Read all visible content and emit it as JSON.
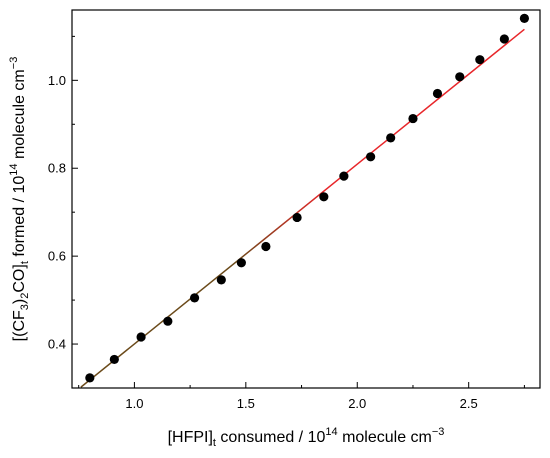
{
  "chart_data": {
    "type": "scatter",
    "xlabel": {
      "prefix": "[HFPI]",
      "sub": "t",
      "middle": " consumed / 10",
      "sup": "14",
      "suffix": " molecule cm",
      "unit_sup": "−3"
    },
    "ylabel": {
      "p1": "[(CF",
      "sub1": "3",
      "p2": ")",
      "sub2": "2",
      "p3": "CO]",
      "sub3": "t",
      "p4": " formed / 10",
      "sup1": "14",
      "p5": " molecule cm",
      "sup2": "−3"
    },
    "xlim": [
      0.72,
      2.82
    ],
    "ylim": [
      0.3,
      1.16
    ],
    "x_ticks": [
      1.0,
      1.5,
      2.0,
      2.5
    ],
    "x_tick_labels": [
      "1.0",
      "1.5",
      "2.0",
      "2.5"
    ],
    "y_ticks": [
      0.4,
      0.6,
      0.8,
      1.0
    ],
    "y_tick_labels": [
      "0.4",
      "0.6",
      "0.8",
      "1.0"
    ],
    "points": [
      {
        "x": 0.8,
        "y": 0.323
      },
      {
        "x": 0.91,
        "y": 0.365
      },
      {
        "x": 1.03,
        "y": 0.416
      },
      {
        "x": 1.15,
        "y": 0.452
      },
      {
        "x": 1.27,
        "y": 0.505
      },
      {
        "x": 1.39,
        "y": 0.546
      },
      {
        "x": 1.48,
        "y": 0.585
      },
      {
        "x": 1.59,
        "y": 0.622
      },
      {
        "x": 1.73,
        "y": 0.688
      },
      {
        "x": 1.85,
        "y": 0.735
      },
      {
        "x": 1.94,
        "y": 0.782
      },
      {
        "x": 2.06,
        "y": 0.826
      },
      {
        "x": 2.15,
        "y": 0.869
      },
      {
        "x": 2.25,
        "y": 0.913
      },
      {
        "x": 2.36,
        "y": 0.97
      },
      {
        "x": 2.46,
        "y": 1.008
      },
      {
        "x": 2.55,
        "y": 1.047
      },
      {
        "x": 2.66,
        "y": 1.094
      },
      {
        "x": 2.75,
        "y": 1.141
      }
    ],
    "fit_line": {
      "x": [
        0.76,
        2.75
      ],
      "y": [
        0.302,
        1.116
      ]
    },
    "colors": {
      "points": "#000000",
      "fit": "#e8262a",
      "fit_lower": "#6b4a1a",
      "axes": "#000000"
    },
    "grid": false,
    "legend": "none"
  }
}
